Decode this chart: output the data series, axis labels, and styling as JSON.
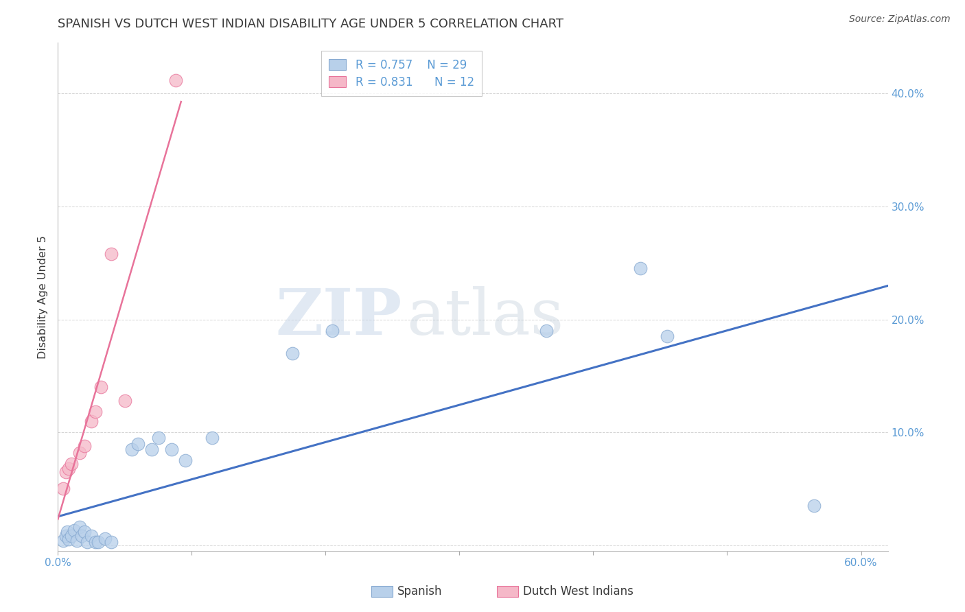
{
  "title": "SPANISH VS DUTCH WEST INDIAN DISABILITY AGE UNDER 5 CORRELATION CHART",
  "source": "Source: ZipAtlas.com",
  "ylabel": "Disability Age Under 5",
  "xlim": [
    0.0,
    0.62
  ],
  "ylim": [
    -0.005,
    0.445
  ],
  "xticks": [
    0.0,
    0.1,
    0.2,
    0.3,
    0.4,
    0.5,
    0.6
  ],
  "xticklabels_show": [
    "0.0%",
    "",
    "",
    "",
    "",
    "",
    "60.0%"
  ],
  "yticks": [
    0.0,
    0.1,
    0.2,
    0.3,
    0.4
  ],
  "yticklabels": [
    "",
    "10.0%",
    "20.0%",
    "30.0%",
    "40.0%"
  ],
  "spanish_x": [
    0.004,
    0.006,
    0.007,
    0.008,
    0.01,
    0.012,
    0.014,
    0.016,
    0.018,
    0.02,
    0.022,
    0.025,
    0.028,
    0.03,
    0.035,
    0.04,
    0.055,
    0.06,
    0.07,
    0.075,
    0.085,
    0.095,
    0.115,
    0.175,
    0.205,
    0.365,
    0.435,
    0.455,
    0.565
  ],
  "spanish_y": [
    0.004,
    0.008,
    0.012,
    0.005,
    0.008,
    0.013,
    0.004,
    0.016,
    0.008,
    0.012,
    0.003,
    0.008,
    0.003,
    0.003,
    0.006,
    0.003,
    0.085,
    0.09,
    0.085,
    0.095,
    0.085,
    0.075,
    0.095,
    0.17,
    0.19,
    0.19,
    0.245,
    0.185,
    0.035
  ],
  "dutch_x": [
    0.004,
    0.006,
    0.008,
    0.01,
    0.016,
    0.02,
    0.025,
    0.028,
    0.032,
    0.04,
    0.05,
    0.088
  ],
  "dutch_y": [
    0.05,
    0.065,
    0.068,
    0.072,
    0.082,
    0.088,
    0.11,
    0.118,
    0.14,
    0.258,
    0.128,
    0.412
  ],
  "spanish_R": 0.757,
  "spanish_N": 29,
  "dutch_R": 0.831,
  "dutch_N": 12,
  "spanish_line_color": "#4472C4",
  "dutch_line_color": "#E8739A",
  "spanish_dot_face": "#B8D0EA",
  "spanish_dot_edge": "#85A8D0",
  "dutch_dot_face": "#F5B8C8",
  "dutch_dot_edge": "#E8739A",
  "legend_label_spanish": "Spanish",
  "legend_label_dutch": "Dutch West Indians",
  "watermark_zip": "ZIP",
  "watermark_atlas": "atlas",
  "title_color": "#3A3A3A",
  "axis_tick_color": "#5B9BD5",
  "grid_color": "#D0D0D0",
  "background_color": "#FFFFFF"
}
